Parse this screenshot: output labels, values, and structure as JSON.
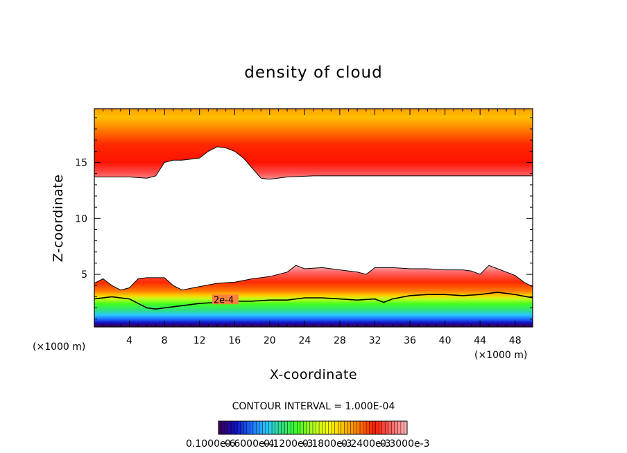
{
  "chart_data": {
    "type": "heatmap",
    "title": "density of cloud",
    "xlabel": "X-coordinate",
    "ylabel": "Z-coordinate",
    "x_unit": "(×1000 m)",
    "y_unit": "(×1000 m)",
    "xlim": [
      0,
      50
    ],
    "ylim": [
      0.3,
      19.8
    ],
    "x_ticks": [
      4,
      8,
      12,
      16,
      20,
      24,
      28,
      32,
      36,
      40,
      44,
      48
    ],
    "y_ticks": [
      5,
      10,
      15
    ],
    "contour_interval_text": "CONTOUR INTERVAL = 1.000E-04",
    "contour_line_label": "2e-4",
    "colorbar_labels": [
      "0.1000e-6",
      "0.6000e-4",
      "0.1200e-3",
      "0.1800e-3",
      "0.2400e-3",
      "0.3000e-3"
    ],
    "colorbar_colors": [
      "#3a0060",
      "#1010c0",
      "#1c6cff",
      "#28c8ff",
      "#30e080",
      "#40ff20",
      "#b0ff20",
      "#ffff00",
      "#ffc000",
      "#ff7800",
      "#ff1e00",
      "#ff6060",
      "#ffb0b0"
    ],
    "upper_layer": {
      "base_x": [
        0,
        4,
        6,
        7,
        8,
        9,
        10,
        11,
        12,
        13,
        14,
        15,
        16,
        17,
        18,
        19,
        20,
        22,
        25,
        30,
        35,
        40,
        45,
        50
      ],
      "base_z": [
        13.7,
        13.7,
        13.6,
        13.8,
        15.0,
        15.2,
        15.2,
        15.3,
        15.4,
        16.0,
        16.4,
        16.3,
        16.0,
        15.4,
        14.5,
        13.6,
        13.5,
        13.7,
        13.8,
        13.8,
        13.8,
        13.8,
        13.8,
        13.8
      ]
    },
    "lower_layer": {
      "top_x": [
        0,
        1,
        2,
        3,
        4,
        5,
        6,
        7,
        8,
        9,
        10,
        12,
        14,
        16,
        18,
        20,
        22,
        23,
        24,
        26,
        28,
        30,
        31,
        32,
        34,
        36,
        38,
        40,
        42,
        43,
        44,
        45,
        46,
        47,
        48,
        49,
        50
      ],
      "top_z": [
        4.2,
        4.6,
        4.0,
        3.6,
        3.8,
        4.6,
        4.7,
        4.7,
        4.7,
        4.0,
        3.6,
        3.9,
        4.2,
        4.3,
        4.6,
        4.8,
        5.2,
        5.8,
        5.5,
        5.6,
        5.4,
        5.2,
        5.0,
        5.6,
        5.6,
        5.5,
        5.5,
        5.4,
        5.4,
        5.3,
        5.0,
        5.8,
        5.5,
        5.2,
        4.9,
        4.3,
        3.9
      ],
      "contour_x": [
        0,
        2,
        4,
        5,
        6,
        7,
        8,
        10,
        12,
        14,
        16,
        18,
        20,
        22,
        24,
        26,
        28,
        30,
        32,
        33,
        34,
        36,
        38,
        40,
        42,
        44,
        46,
        48,
        50
      ],
      "contour_z": [
        2.8,
        3.0,
        2.8,
        2.4,
        2.0,
        1.9,
        2.0,
        2.2,
        2.4,
        2.5,
        2.6,
        2.6,
        2.7,
        2.7,
        2.9,
        2.9,
        2.8,
        2.7,
        2.8,
        2.5,
        2.8,
        3.1,
        3.2,
        3.2,
        3.1,
        3.2,
        3.4,
        3.2,
        2.9
      ],
      "bottom_z": 0.4
    }
  }
}
